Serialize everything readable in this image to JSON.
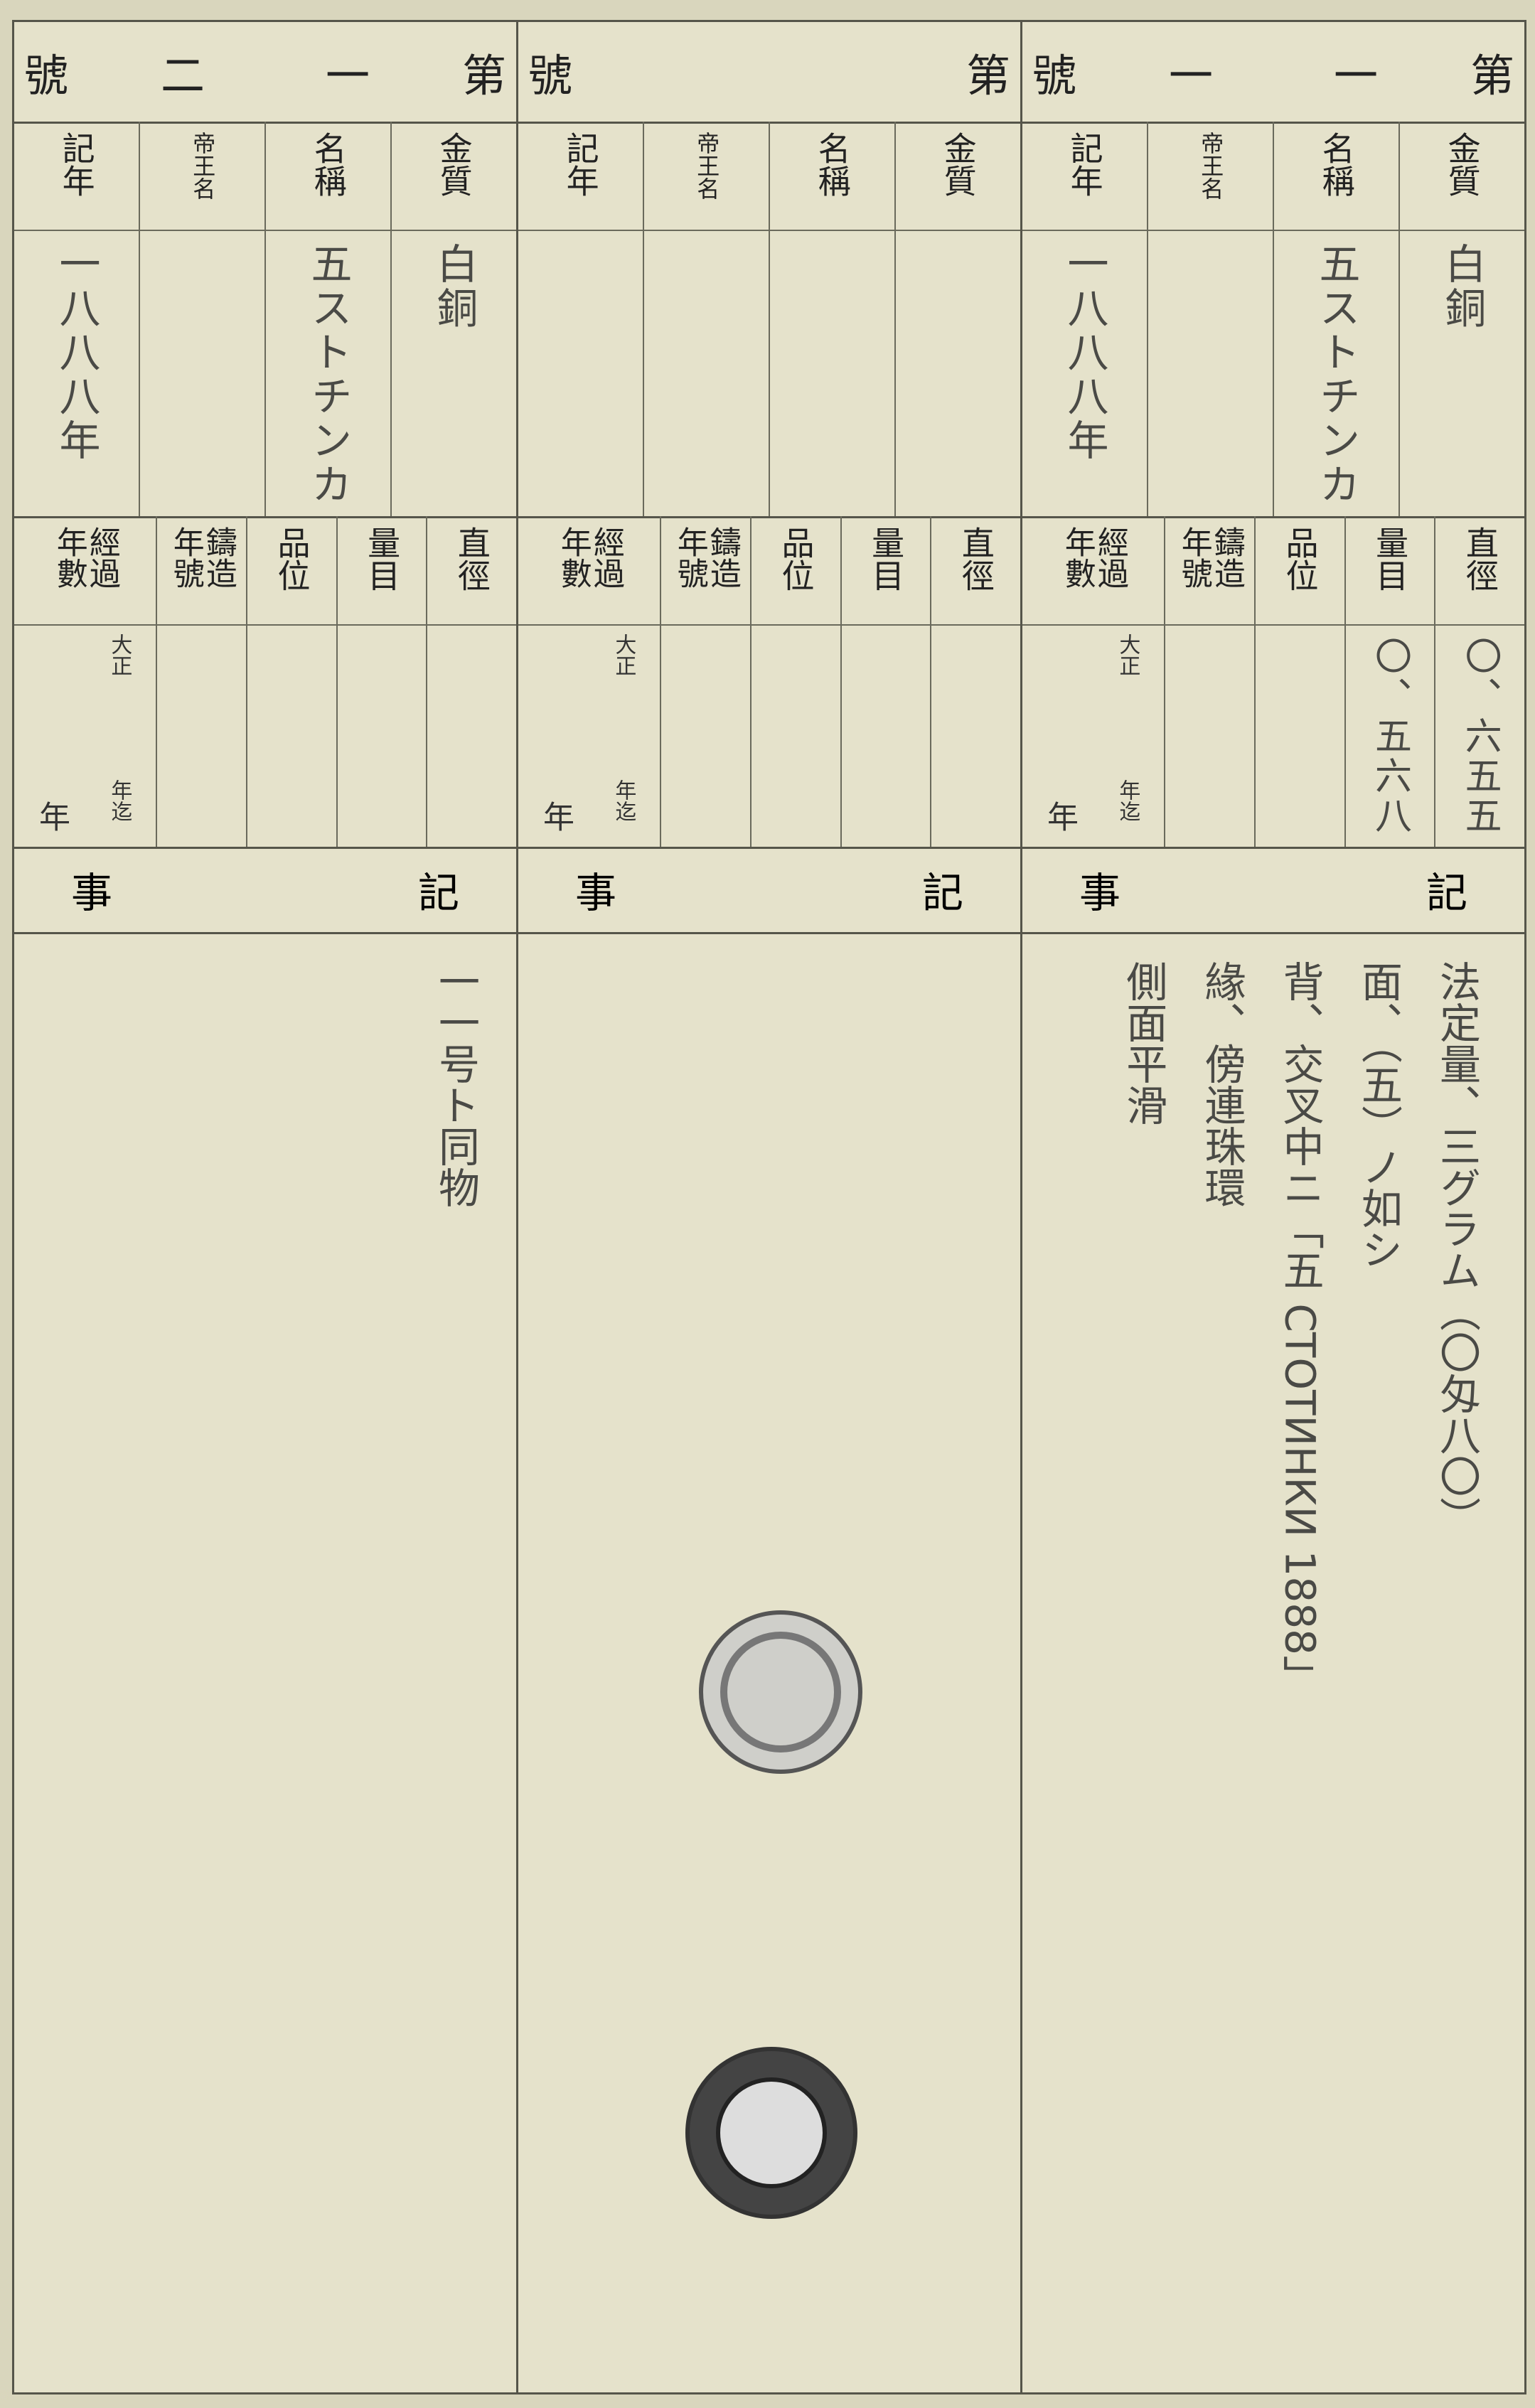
{
  "panels": [
    {
      "header": {
        "prefix": "第",
        "number": [
          "一",
          "二"
        ],
        "suffix": "號"
      },
      "fields": [
        {
          "label": "記年",
          "value": "一八八八年"
        },
        {
          "label": "帝王名"
        },
        {
          "label": "名稱",
          "value": "五ストチンカ"
        },
        {
          "label": "金質",
          "value": "白銅"
        }
      ],
      "measures": [
        {
          "label": "經過年數",
          "era": "大正",
          "until": "年迄",
          "years": "年"
        },
        {
          "label": "鑄造年號"
        },
        {
          "label": "品位"
        },
        {
          "label": "量目"
        },
        {
          "label": "直徑"
        }
      ],
      "notes": {
        "title_left": "事",
        "title_right": "記",
        "lines": [
          "一一号ト同物"
        ]
      }
    },
    {
      "header": {
        "prefix": "第",
        "suffix": "號"
      },
      "fields": [
        {
          "label": "記年"
        },
        {
          "label": "帝王名"
        },
        {
          "label": "名稱"
        },
        {
          "label": "金質"
        }
      ],
      "measures": [
        {
          "label": "經過年數",
          "era": "大正",
          "until": "年迄",
          "years": "年"
        },
        {
          "label": "鑄造年號"
        },
        {
          "label": "品位"
        },
        {
          "label": "量目"
        },
        {
          "label": "直徑"
        }
      ],
      "notes": {
        "title_left": "事",
        "title_right": "記"
      }
    },
    {
      "header": {
        "prefix": "第",
        "number": [
          "一",
          "一"
        ],
        "suffix": "號"
      },
      "fields": [
        {
          "label": "記年",
          "value": "一八八八年"
        },
        {
          "label": "帝王名"
        },
        {
          "label": "名稱",
          "value": "五ストチンカ"
        },
        {
          "label": "金質",
          "value": "白銅"
        }
      ],
      "measures": [
        {
          "label": "經過年數",
          "era": "大正",
          "until": "年迄",
          "years": "年"
        },
        {
          "label": "鑄造年號"
        },
        {
          "label": "品位"
        },
        {
          "label": "量目",
          "value": "〇、五六八"
        },
        {
          "label": "直徑",
          "value": "〇、六五五"
        }
      ],
      "notes": {
        "title_left": "事",
        "title_right": "記",
        "lines": [
          "法定量、三グラム（〇匁八〇）",
          "面、（五）ノ如シ",
          "背、交叉中ニ「五 СТОТИНКИ 1888」",
          "緣、傍連珠環",
          "側面平滑"
        ]
      }
    }
  ]
}
